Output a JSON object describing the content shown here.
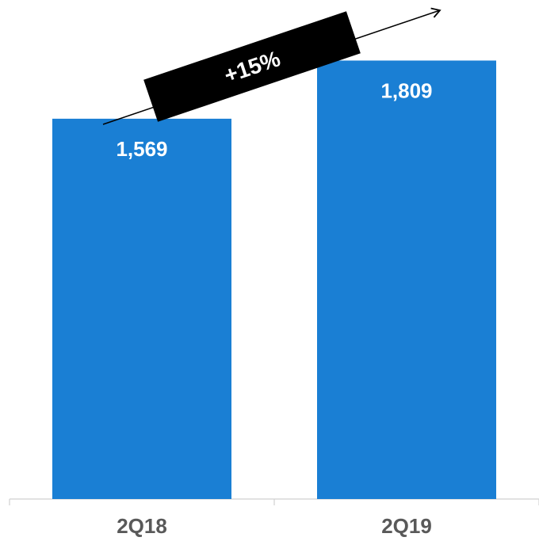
{
  "chart_data": {
    "type": "bar",
    "categories": [
      "2Q18",
      "2Q19"
    ],
    "values": [
      1569,
      1809
    ],
    "value_labels": [
      "1,569",
      "1,809"
    ],
    "title": "",
    "xlabel": "",
    "ylabel": "",
    "ylim": [
      0,
      2000
    ],
    "grid": false,
    "bar_color": "#1a7fd4",
    "annotation": {
      "text": "+15%",
      "from_category": "2Q18",
      "to_category": "2Q19"
    }
  }
}
